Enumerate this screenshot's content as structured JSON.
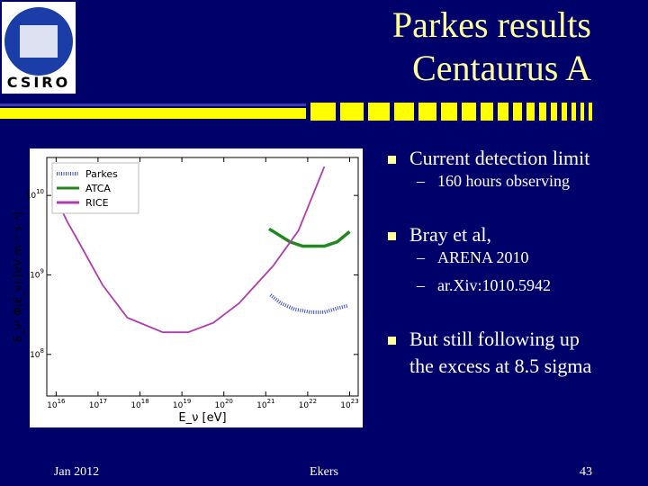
{
  "slide": {
    "logo": "CSIRO",
    "title": [
      "Parkes results",
      "Centaurus A"
    ],
    "bullets": [
      {
        "lines": [
          "Current detection limit"
        ],
        "sub": [
          "160 hours observing"
        ]
      },
      {
        "lines": [
          "Bray et al,"
        ],
        "sub": [
          "ARENA 2010",
          "ar.Xiv:1010.5942"
        ]
      },
      {
        "lines": [
          "But still following up",
          "the excess at 8.5 sigma"
        ]
      }
    ],
    "footer": {
      "date": "Jan 2012",
      "author": "Ekers",
      "page": 43
    }
  },
  "chart_data": {
    "type": "line",
    "xlabel": "E_ν [eV]",
    "ylabel": "E_ν² Φ(E_ν) [eV m⁻² s⁻¹]",
    "xscale": "log",
    "yscale": "log",
    "legend": "upper left",
    "xlim": [
      6000000000000000.0,
      1.6e+23
    ],
    "ylim": [
      30000000.0,
      30000000000.0
    ],
    "xticks": [
      {
        "value": 1e+16,
        "label": "10^16"
      },
      {
        "value": 1e+17,
        "label": "10^17"
      },
      {
        "value": 1e+18,
        "label": "10^18"
      },
      {
        "value": 1e+19,
        "label": "10^19"
      },
      {
        "value": 1e+20,
        "label": "10^20"
      },
      {
        "value": 1e+21,
        "label": "10^21"
      },
      {
        "value": 1e+22,
        "label": "10^22"
      },
      {
        "value": 1e+23,
        "label": "10^23"
      }
    ],
    "yticks": [
      {
        "value": 100000000.0,
        "label": "10^8"
      },
      {
        "value": 1000000000.0,
        "label": "10^9"
      },
      {
        "value": 10000000000.0,
        "label": "10^10"
      }
    ],
    "series": [
      {
        "name": "Parkes",
        "color": "#3b4fc4",
        "linestyle": "dotted",
        "x": [
          1.3e+21,
          2.3e+21,
          4.8e+21,
          1.2e+22,
          2.5e+22,
          5e+22,
          9e+22
        ],
        "values": [
          560000000.0,
          440000000.0,
          370000000.0,
          340000000.0,
          340000000.0,
          380000000.0,
          410000000.0
        ]
      },
      {
        "name": "ATCA",
        "color": "#1e8a1e",
        "linestyle": "solid",
        "x": [
          1.2e+21,
          3.8e+21,
          7.6e+21,
          2.5e+22,
          5e+22,
          1e+23
        ],
        "values": [
          3800000000.0,
          2600000000.0,
          2300000000.0,
          2300000000.0,
          2600000000.0,
          3500000000.0
        ]
      },
      {
        "name": "RICE",
        "color": "#b03cb0",
        "linestyle": "solid",
        "x": [
          1e+16,
          1.8e+16,
          3.2e+16,
          1.3e+17,
          5e+17,
          3.5e+18,
          1.4e+19,
          5.6e+19,
          2.3e+20,
          1.5e+21,
          6e+21,
          2.5e+22
        ],
        "values": [
          9300000000.0,
          4800000000.0,
          2800000000.0,
          740000000.0,
          290000000.0,
          190000000.0,
          190000000.0,
          250000000.0,
          440000000.0,
          1300000000.0,
          3600000000.0,
          23000000000.0
        ]
      }
    ]
  }
}
